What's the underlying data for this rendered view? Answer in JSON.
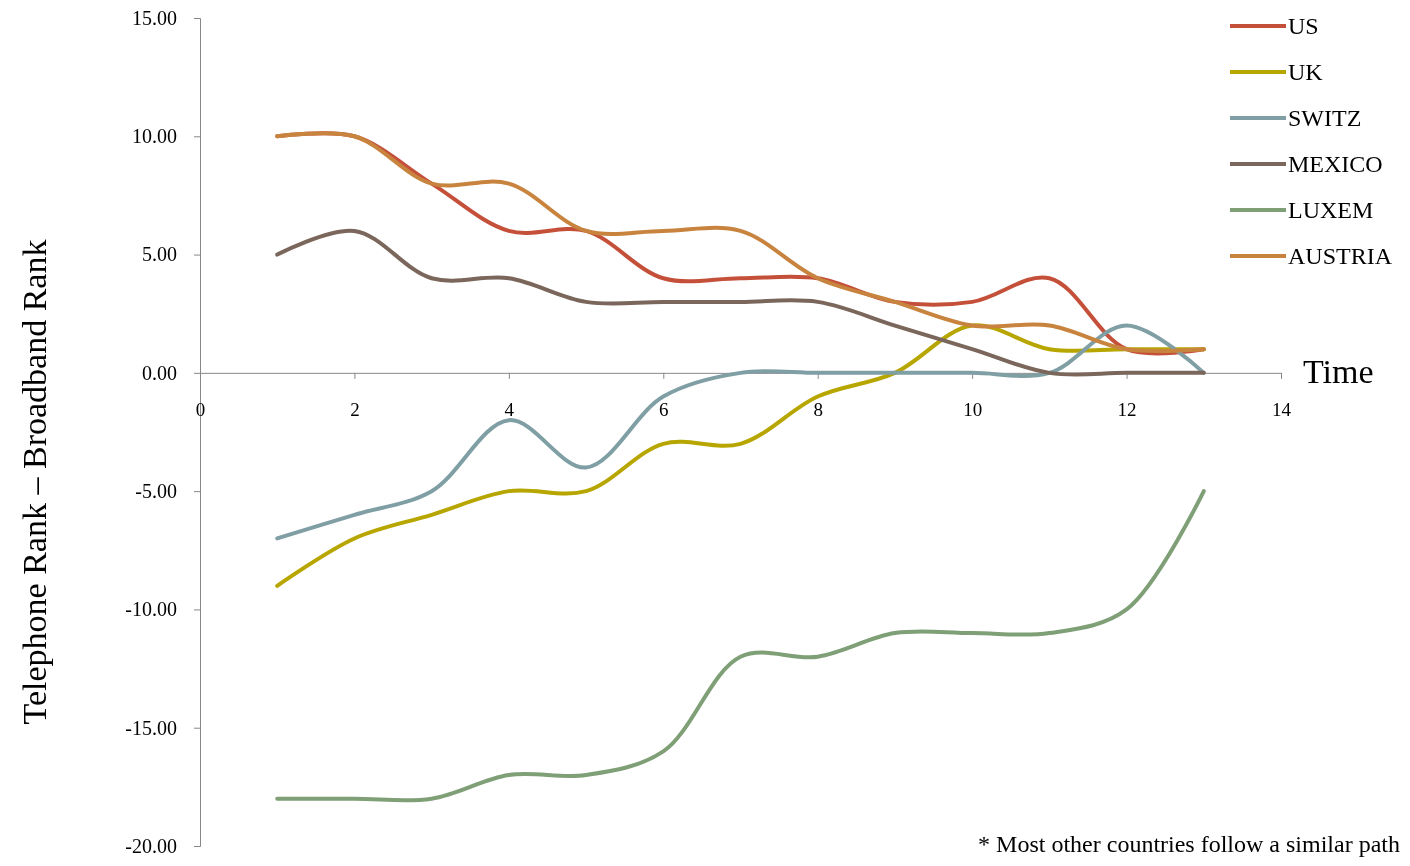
{
  "chart_data": {
    "type": "line",
    "xlabel": "Time",
    "ylabel": "Telephone Rank – Broadband Rank",
    "x": [
      1,
      2,
      3,
      4,
      5,
      6,
      7,
      8,
      9,
      10,
      11,
      12,
      13
    ],
    "xlim": [
      0,
      14
    ],
    "xticks": [
      0,
      2,
      4,
      6,
      8,
      10,
      12,
      14
    ],
    "ylim": [
      -20,
      15
    ],
    "yticks": [
      {
        "value": -20,
        "label": "-20.00"
      },
      {
        "value": -15,
        "label": "-15.00"
      },
      {
        "value": -10,
        "label": "-10.00"
      },
      {
        "value": -5,
        "label": "-5.00"
      },
      {
        "value": 0,
        "label": "0.00"
      },
      {
        "value": 5,
        "label": "5.00"
      },
      {
        "value": 10,
        "label": "10.00"
      },
      {
        "value": 15,
        "label": "15.00"
      }
    ],
    "grid": false,
    "legend": "top right",
    "marker": "none",
    "line_style": "solid",
    "series": [
      {
        "name": "US",
        "color": "#c5503a",
        "values": [
          10,
          10,
          8,
          6,
          6,
          4,
          4,
          4,
          3,
          3,
          4,
          1,
          1
        ]
      },
      {
        "name": "UK",
        "color": "#b8a600",
        "values": [
          -9,
          -7,
          -6,
          -5,
          -5,
          -3,
          -3,
          -1,
          0,
          2,
          1,
          1,
          1
        ]
      },
      {
        "name": "SWITZ",
        "color": "#7f9fa5",
        "values": [
          -7,
          -6,
          -5,
          -2,
          -4,
          -1,
          0,
          0,
          0,
          0,
          0,
          2,
          0
        ]
      },
      {
        "name": "MEXICO",
        "color": "#7a665a",
        "values": [
          5,
          6,
          4,
          4,
          3,
          3,
          3,
          3,
          2,
          1,
          0,
          0,
          0
        ]
      },
      {
        "name": "LUXEM",
        "color": "#7f9f77",
        "values": [
          -18,
          -18,
          -18,
          -17,
          -17,
          -16,
          -12,
          -12,
          -11,
          -11,
          -11,
          -10,
          -5
        ]
      },
      {
        "name": "AUSTRIA",
        "color": "#c8843e",
        "values": [
          10,
          10,
          8,
          8,
          6,
          6,
          6,
          4,
          3,
          2,
          2,
          1,
          1
        ]
      }
    ],
    "annotations": [
      "* Most other countries follow a similar path"
    ]
  }
}
